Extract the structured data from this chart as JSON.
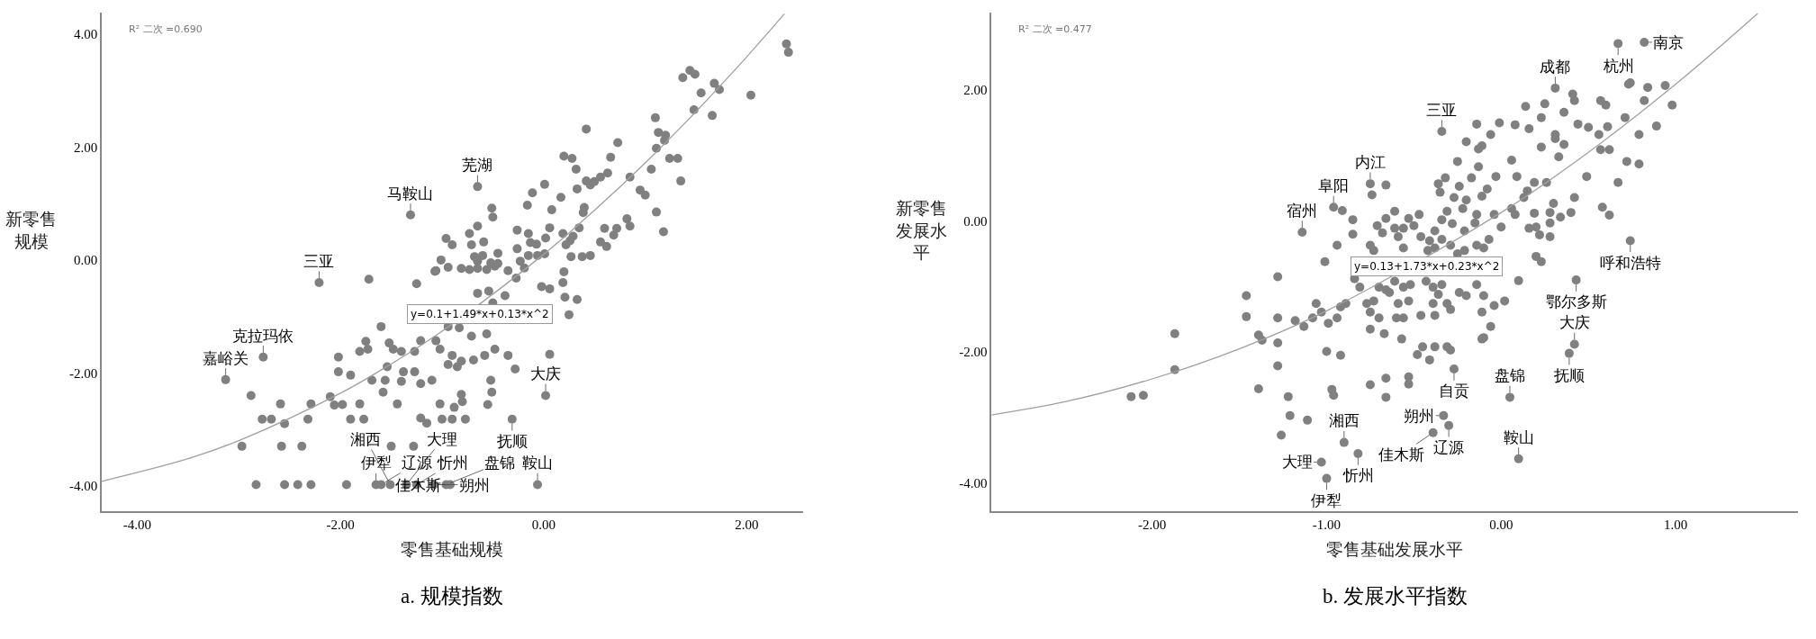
{
  "chart_data": [
    {
      "type": "scatter",
      "title": "a. 规模指数",
      "xlabel": "零售基础规模",
      "ylabel": "新零售规模",
      "marker": "circle",
      "grid": false,
      "xlim": [
        -4.35,
        2.55
      ],
      "ylim": [
        -4.45,
        4.38
      ],
      "xticks": [
        {
          "value": -4,
          "label": "-4.00"
        },
        {
          "value": -2,
          "label": "-2.00"
        },
        {
          "value": 0,
          "label": "0.00"
        },
        {
          "value": 2,
          "label": "2.00"
        }
      ],
      "yticks": [
        {
          "value": -4,
          "label": "-4.00"
        },
        {
          "value": -2,
          "label": "-2.00"
        },
        {
          "value": 0,
          "label": "0.00"
        },
        {
          "value": 2,
          "label": "2.00"
        },
        {
          "value": 4,
          "label": "4.00"
        }
      ],
      "series": [
        {
          "type": "scatter",
          "color": "#808080",
          "x": [
            1.44,
            1.49,
            1.37,
            1.68,
            1.73,
            1.55,
            2.04,
            1.48,
            1.66,
            1.1,
            0.42,
            1.13,
            1.2,
            1.19,
            1.11,
            0.73,
            1.24,
            1.32,
            1.06,
            0.85,
            1.35,
            0.66,
            0.2,
            0.28,
            0.32,
            0.63,
            0.56,
            0.5,
            0.42,
            0.46,
            0.33,
            0.01,
            -0.11,
            0.17,
            -0.16,
            0.08,
            0.4,
            0.39,
            0.95,
            1.0,
            1.11,
            1.18,
            0.82,
            0.85,
            0.72,
            0.69,
            0.6,
            0.56,
            0.62,
            0.35,
            0.19,
            0.26,
            0.29,
            0.22,
            0.06,
            0.02,
            -0.15,
            -0.26,
            -0.13,
            -0.07,
            -0.26,
            0.01,
            -0.06,
            -0.15,
            0.38,
            0.46,
            0.27,
            0.2,
            -0.23,
            -0.19,
            -0.51,
            -0.5,
            -0.65,
            -0.73,
            -0.59,
            -0.71,
            -0.96,
            -0.9,
            -0.45,
            -0.68,
            -0.6,
            -0.65,
            -0.52,
            -0.45,
            -1.01,
            -1.07,
            -1.31,
            -0.65,
            2.39,
            2.41,
            -2.21,
            -1.72,
            -1.25,
            -1.06,
            -0.94,
            -0.81,
            -0.73,
            -0.65,
            -0.56,
            -0.48,
            -0.35,
            -0.27,
            -0.02,
            0.06,
            0.19,
            0.21,
            0.33,
            0.25,
            0.06,
            -0.28,
            -0.65,
            -0.54,
            -0.38,
            -0.5,
            -0.94,
            -0.83,
            -0.71,
            -0.56,
            -1.6,
            -1.75,
            -1.81,
            -2.02,
            -1.73,
            -1.52,
            -1.48,
            -1.4,
            -1.27,
            -1.21,
            -1.06,
            -1.02,
            -0.9,
            -0.81,
            -0.94,
            -0.85,
            -0.69,
            -0.58,
            -0.48,
            -0.35,
            -0.52,
            -0.51,
            -0.55,
            -0.81,
            -0.88,
            -0.8,
            -1.02,
            -0.77,
            -0.9,
            -1.0,
            -1.21,
            -1.15,
            -1.1,
            -1.21,
            -1.27,
            -1.38,
            -1.4,
            -1.56,
            -1.54,
            -1.69,
            -1.9,
            -2.02,
            -2.1,
            -2.06,
            -1.98,
            -1.81,
            -1.9,
            -1.77,
            -1.44,
            -1.58,
            -2.29,
            -2.32,
            -2.59,
            -2.68,
            -2.77,
            -2.55,
            -2.88,
            -2.76,
            -3.13,
            -2.97,
            -2.58,
            -2.38,
            -1.5,
            -1.28,
            -2.83,
            -2.55,
            -2.42,
            -2.29,
            -1.94,
            -1.65,
            -1.6,
            -1.51,
            -1.35,
            -1.25,
            -1.08,
            -0.96,
            -0.92,
            -0.06,
            0.02,
            -0.31
          ],
          "values": [
            3.36,
            3.29,
            3.23,
            3.13,
            3.02,
            2.96,
            2.92,
            2.66,
            2.56,
            2.52,
            2.32,
            2.26,
            2.21,
            2.12,
            1.98,
            2.08,
            1.8,
            1.8,
            1.61,
            1.47,
            1.4,
            1.82,
            1.84,
            1.8,
            1.61,
            1.54,
            1.47,
            1.39,
            1.4,
            1.33,
            1.26,
            1.34,
            1.19,
            1.11,
            0.97,
            0.89,
            0.93,
            0.84,
            1.24,
            1.15,
            0.85,
            0.5,
            0.73,
            0.6,
            0.56,
            0.44,
            0.56,
            0.32,
            0.24,
            0.57,
            0.47,
            0.34,
            0.42,
            0.27,
            0.57,
            0.39,
            0.47,
            0.53,
            0.31,
            0.28,
            0.2,
            0.11,
            0.08,
            0.08,
            0.06,
            0.08,
            0.06,
            -0.21,
            -0.02,
            -0.14,
            0.92,
            0.76,
            0.6,
            0.47,
            0.32,
            0.27,
            0.38,
            0.27,
            0.12,
            0.06,
            0.08,
            -0.02,
            -0.05,
            -0.06,
            0.0,
            -0.2,
            0.8,
            1.3,
            3.83,
            3.68,
            -0.4,
            -0.34,
            -0.42,
            -0.19,
            -0.13,
            -0.15,
            -0.17,
            -0.15,
            -0.17,
            -0.11,
            -0.19,
            -0.32,
            -0.47,
            -0.51,
            -0.4,
            -0.66,
            -0.7,
            -0.97,
            -1.67,
            -1.93,
            -0.59,
            -0.55,
            -0.63,
            -0.76,
            -1.18,
            -1.2,
            -1.35,
            -1.31,
            -1.18,
            -1.44,
            -1.62,
            -1.72,
            -1.58,
            -1.47,
            -1.58,
            -1.62,
            -1.62,
            -1.43,
            -1.43,
            -1.58,
            -1.69,
            -1.79,
            -1.85,
            -1.89,
            -1.77,
            -1.69,
            -1.58,
            -1.69,
            -2.13,
            -2.34,
            -2.56,
            -2.38,
            -2.61,
            -2.51,
            -2.55,
            -2.82,
            -2.82,
            -2.82,
            -2.8,
            -2.89,
            -2.13,
            -2.19,
            -1.98,
            -1.98,
            -2.15,
            -2.13,
            -1.89,
            -2.13,
            -2.04,
            -1.98,
            -2.42,
            -2.57,
            -2.56,
            -2.55,
            -2.82,
            -2.82,
            -2.55,
            -2.34,
            -2.55,
            -2.82,
            -2.55,
            -2.82,
            -2.82,
            -2.9,
            -2.4,
            -1.72,
            -2.12,
            -3.3,
            -3.3,
            -3.3,
            -3.3,
            -3.3,
            -3.98,
            -3.98,
            -3.98,
            -3.98,
            -3.98,
            -3.98,
            -3.98,
            -3.98,
            -3.98,
            -3.98,
            -3.98,
            -3.98,
            -3.98,
            -3.98,
            -2.4,
            -2.82
          ]
        },
        {
          "type": "line",
          "marker": "none",
          "color": "#a0a0a0",
          "x": [
            -4.35,
            -3.5,
            -3,
            -2,
            -1.5,
            -1,
            0,
            0.5,
            1,
            1.5,
            2,
            2.37
          ],
          "values": [
            -3.92,
            -3.52,
            -3.2,
            -2.36,
            -1.84,
            -1.26,
            0.1,
            0.88,
            1.72,
            2.63,
            3.6,
            4.36
          ]
        }
      ],
      "annotations": [
        "R² 二次 =0.690",
        "y=0.1+1.49*x+0.13*x^2",
        {
          "text": "三亚",
          "x": -2.21,
          "y": -0.4
        },
        {
          "text": "马鞍山",
          "x": -1.31,
          "y": 0.8
        },
        {
          "text": "芜湖",
          "x": -0.65,
          "y": 1.3
        },
        {
          "text": "克拉玛依",
          "x": -2.76,
          "y": -1.72
        },
        {
          "text": "嘉峪关",
          "x": -3.13,
          "y": -2.12
        },
        {
          "text": "大庆",
          "x": 0.02,
          "y": -2.4
        },
        {
          "text": "抚顺",
          "x": -0.31,
          "y": -2.82
        },
        {
          "text": "伊犁",
          "x": -1.65,
          "y": -3.98
        },
        {
          "text": "辽源",
          "x": -1.6,
          "y": -3.98
        },
        {
          "text": "湘西",
          "x": -1.51,
          "y": -3.98
        },
        {
          "text": "大理",
          "x": -1.35,
          "y": -3.98
        },
        {
          "text": "忻州",
          "x": -1.25,
          "y": -3.98
        },
        {
          "text": "朔州",
          "x": -1.08,
          "y": -3.98
        },
        {
          "text": "盘锦",
          "x": -0.96,
          "y": -3.98
        },
        {
          "text": "佳木斯",
          "x": -0.92,
          "y": -3.98
        },
        {
          "text": "鞍山",
          "x": -0.06,
          "y": -3.98
        }
      ]
    },
    {
      "type": "scatter",
      "title": "b. 发展水平指数",
      "xlabel": "零售基础发展水平",
      "ylabel": "新零售发展水平",
      "marker": "circle",
      "grid": false,
      "xlim": [
        -2.92,
        1.7
      ],
      "ylim": [
        -4.43,
        3.18
      ],
      "xticks": [
        {
          "value": -2,
          "label": "-2.00"
        },
        {
          "value": -1,
          "label": "-1.00"
        },
        {
          "value": 0,
          "label": "0.00"
        },
        {
          "value": 1,
          "label": "1.00"
        }
      ],
      "yticks": [
        {
          "value": -4,
          "label": "-4.00"
        },
        {
          "value": -2,
          "label": "-2.00"
        },
        {
          "value": 0,
          "label": "0.00"
        },
        {
          "value": 2,
          "label": "2.00"
        }
      ],
      "series": [
        {
          "type": "scatter",
          "color": "#808080",
          "x": [
            0.67,
            0.82,
            0.31,
            0.41,
            0.42,
            0.36,
            0.14,
            0.25,
            0.23,
            0.08,
            -0.01,
            -0.14,
            -0.06,
            -0.2,
            -0.13,
            -0.11,
            -0.34,
            0.16,
            0.31,
            0.31,
            0.36,
            0.23,
            0.33,
            0.44,
            0.5,
            0.57,
            0.6,
            0.56,
            0.61,
            0.57,
            0.62,
            0.73,
            0.74,
            0.84,
            0.94,
            0.82,
            0.98,
            0.71,
            0.79,
            0.89,
            0.72,
            0.79,
            0.67,
            0.49,
            0.42,
            0.58,
            0.62,
            0.06,
            0.09,
            0.19,
            0.26,
            0.15,
            0.13,
            -0.03,
            0.06,
            0.08,
            0.19,
            0.28,
            0.34,
            0.4,
            0.3,
            0.2,
            0.28,
            0.0,
            -0.04,
            -0.08,
            -0.11,
            -0.17,
            -0.13,
            -0.25,
            -0.32,
            -0.36,
            -0.35,
            -0.24,
            -0.27,
            -0.31,
            -0.2,
            -0.22,
            -0.14,
            -0.15,
            -0.21,
            -0.28,
            -0.34,
            -0.38,
            -0.47,
            -0.53,
            -0.61,
            -0.66,
            -0.71,
            -0.68,
            -0.61,
            -0.56,
            -0.59,
            -0.5,
            -0.46,
            -0.41,
            -0.38,
            -0.34,
            -0.29,
            -0.25,
            -0.21,
            -0.14,
            -0.1,
            -0.07,
            0.16,
            0.22,
            0.28,
            0.2,
            0.23,
            0.1,
            0.02,
            -0.04,
            -0.1,
            -0.14,
            -0.2,
            -0.24,
            -0.31,
            -0.29,
            -0.36,
            -0.39,
            -0.43,
            -0.52,
            -0.56,
            -0.61,
            -0.66,
            -0.7,
            -0.73,
            -0.77,
            -0.81,
            -0.84,
            -0.89,
            -0.92,
            -0.94,
            -1.03,
            -0.99,
            -1.06,
            -1.08,
            -1.18,
            -1.28,
            -1.28,
            -1.46,
            -1.46,
            -1.39,
            -1.37,
            -1.28,
            -1.13,
            -1.01,
            -0.94,
            -0.85,
            -0.75,
            -0.74,
            -0.66,
            -0.75,
            -0.96,
            -0.91,
            -0.85,
            -1.14,
            -0.73,
            -0.56,
            -0.42,
            -0.64,
            -0.59,
            -0.53,
            -0.39,
            -0.34,
            -0.75,
            -0.7,
            -0.75,
            -0.67,
            -0.6,
            -0.56,
            -0.46,
            -0.38,
            -0.11,
            -0.1,
            -0.06,
            -1.87,
            -1.87,
            -2.12,
            -2.05,
            -1.39,
            -1.28,
            -1.22,
            -1.21,
            -1.26,
            -1.11,
            -1.0,
            -0.92,
            -0.97,
            -0.96,
            -0.75,
            -0.66,
            -0.66,
            -0.53,
            -0.53,
            -0.48,
            -0.45,
            -0.41,
            -0.38,
            -0.31,
            -0.29,
            -0.27,
            -0.57,
            -0.11,
            0.05,
            0.39,
            0.42,
            0.1,
            0.43,
            0.74,
            -0.33,
            -0.3,
            -0.39,
            -0.9,
            -0.82,
            -1.03,
            -1.0
          ],
          "values": [
            2.71,
            2.73,
            2.03,
            1.94,
            1.84,
            1.66,
            1.75,
            1.79,
            1.58,
            1.47,
            1.5,
            1.48,
            1.32,
            1.21,
            1.1,
            1.15,
            1.37,
            1.41,
            1.32,
            1.26,
            1.17,
            1.13,
            0.98,
            1.48,
            1.43,
            1.84,
            1.77,
            1.32,
            1.44,
            1.09,
            1.09,
            2.09,
            2.11,
            2.04,
            2.07,
            1.84,
            1.77,
            1.58,
            1.32,
            1.45,
            0.91,
            0.87,
            0.59,
            0.68,
            0.36,
            0.21,
            0.09,
            0.93,
            0.68,
            0.59,
            0.59,
            0.46,
            0.36,
            0.68,
            0.19,
            0.1,
            0.12,
            0.13,
            0.06,
            0.13,
            0.27,
            -0.09,
            -0.03,
            -0.09,
            0.1,
            0.49,
            0.38,
            0.66,
            0.83,
            0.91,
            0.66,
            0.57,
            0.44,
            0.53,
            0.36,
            0.15,
            0.32,
            0.19,
            0.1,
            -0.03,
            -0.15,
            -0.04,
            0.02,
            -0.15,
            0.1,
            0.04,
            0.15,
            0.04,
            -0.07,
            -0.18,
            -0.11,
            -0.11,
            -0.24,
            -0.07,
            -0.24,
            -0.3,
            -0.41,
            -0.28,
            -0.37,
            -0.5,
            -0.45,
            -0.37,
            -0.41,
            -0.28,
            -0.11,
            -0.21,
            -0.24,
            -0.54,
            -0.62,
            -0.91,
            -1.22,
            -1.29,
            -1.14,
            -0.97,
            -1.14,
            -1.09,
            -1.26,
            -1.35,
            -1.12,
            -1.01,
            -0.92,
            -0.97,
            -1.01,
            -0.92,
            -1.05,
            -1.01,
            -1.22,
            -1.26,
            -1.01,
            -0.88,
            -1.26,
            -1.31,
            -1.48,
            -1.39,
            -1.56,
            -1.26,
            -1.48,
            -1.52,
            -1.48,
            -0.85,
            -1.14,
            -1.46,
            -1.74,
            -1.82,
            -1.86,
            -1.61,
            -0.62,
            -0.37,
            -0.2,
            -0.37,
            0.4,
            0.55,
            0.57,
            0.21,
            0.16,
            0.02,
            -0.17,
            -0.45,
            -0.41,
            -0.45,
            -1.09,
            -1.26,
            -1.22,
            -1.26,
            -0.97,
            -1.39,
            -1.48,
            -1.65,
            -1.72,
            -1.48,
            -1.48,
            -1.44,
            -1.44,
            -1.39,
            -1.78,
            -1.61,
            -1.72,
            -2.27,
            -2.68,
            -2.66,
            -2.56,
            -2.21,
            -2.68,
            -2.97,
            -3.27,
            -3.04,
            -1.99,
            -2.05,
            -2.57,
            -2.66,
            -2.5,
            -2.4,
            -2.69,
            -2.38,
            -2.49,
            -2.04,
            -1.92,
            -2.12,
            -1.92,
            -1.92,
            -1.97,
            -2.26,
            -1.8,
            -1.8,
            -2.69,
            -2.02,
            -1.88,
            -3.63,
            -0.9,
            -0.3,
            -2.97,
            -3.12,
            -3.23,
            -3.38,
            -3.55,
            -3.68,
            -3.93
          ]
        },
        {
          "type": "line",
          "marker": "none",
          "color": "#a0a0a0",
          "x": [
            -2.92,
            -2.5,
            -2,
            -1.5,
            -1,
            0,
            0.5,
            1,
            1.47
          ],
          "values": [
            -2.96,
            -2.76,
            -2.41,
            -1.95,
            -1.37,
            0.13,
            1.05,
            2.09,
            3.17
          ]
        }
      ],
      "annotations": [
        "R² 二次 =0.477",
        "y=0.13+1.73*x+0.23*x^2",
        {
          "text": "杭州",
          "x": 0.67,
          "y": 2.71
        },
        {
          "text": "南京",
          "x": 0.82,
          "y": 2.73
        },
        {
          "text": "成都",
          "x": 0.31,
          "y": 2.03
        },
        {
          "text": "三亚",
          "x": -0.34,
          "y": 1.37
        },
        {
          "text": "内江",
          "x": -0.75,
          "y": 0.57
        },
        {
          "text": "阜阳",
          "x": -0.96,
          "y": 0.21
        },
        {
          "text": "宿州",
          "x": -1.14,
          "y": -0.17
        },
        {
          "text": "呼和浩特",
          "x": 0.74,
          "y": -0.3
        },
        {
          "text": "鄂尔多斯",
          "x": 0.43,
          "y": -0.9
        },
        {
          "text": "大庆",
          "x": 0.42,
          "y": -1.88
        },
        {
          "text": "抚顺",
          "x": 0.39,
          "y": -2.02
        },
        {
          "text": "自贡",
          "x": -0.27,
          "y": -2.26
        },
        {
          "text": "盘锦",
          "x": 0.05,
          "y": -2.69
        },
        {
          "text": "朔州",
          "x": -0.33,
          "y": -2.97
        },
        {
          "text": "辽源",
          "x": -0.3,
          "y": -3.12
        },
        {
          "text": "佳木斯",
          "x": -0.39,
          "y": -3.23
        },
        {
          "text": "湘西",
          "x": -0.9,
          "y": -3.38
        },
        {
          "text": "忻州",
          "x": -0.82,
          "y": -3.55
        },
        {
          "text": "大理",
          "x": -1.03,
          "y": -3.68
        },
        {
          "text": "伊犁",
          "x": -1.0,
          "y": -3.93
        },
        {
          "text": "鞍山",
          "x": 0.1,
          "y": -3.63
        }
      ]
    }
  ]
}
